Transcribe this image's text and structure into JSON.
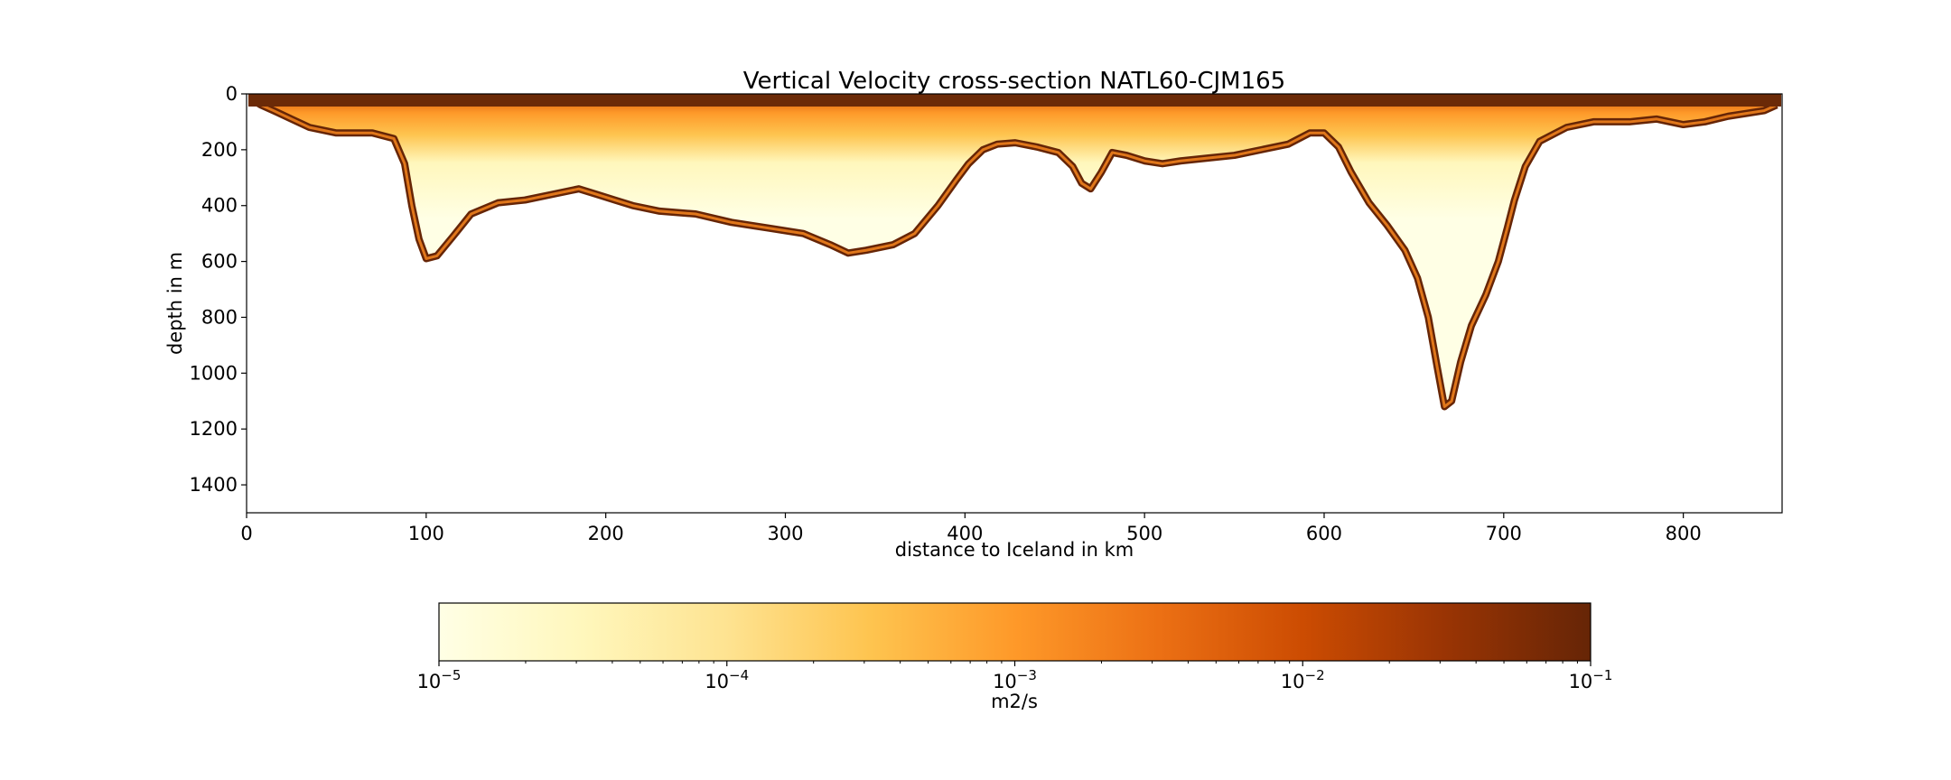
{
  "chart_data": {
    "type": "heatmap",
    "title": "Vertical Velocity cross-section NATL60-CJM165",
    "xlabel": "distance to Iceland in km",
    "ylabel": "depth in m",
    "xlim": [
      0,
      855
    ],
    "ylim": [
      1500,
      0
    ],
    "y_inverted": true,
    "xticks": [
      0,
      100,
      200,
      300,
      400,
      500,
      600,
      700,
      800
    ],
    "yticks": [
      0,
      200,
      400,
      600,
      800,
      1000,
      1200,
      1400
    ],
    "seafloor_depth_profile": {
      "x_km": [
        3,
        8,
        15,
        25,
        35,
        50,
        70,
        82,
        88,
        92,
        96,
        100,
        106,
        115,
        125,
        140,
        155,
        170,
        185,
        195,
        205,
        215,
        230,
        250,
        270,
        290,
        310,
        325,
        335,
        345,
        360,
        372,
        385,
        395,
        402,
        410,
        418,
        428,
        440,
        452,
        460,
        465,
        470,
        476,
        482,
        490,
        500,
        510,
        520,
        535,
        550,
        565,
        580,
        592,
        600,
        608,
        615,
        625,
        635,
        645,
        652,
        658,
        663,
        667,
        671,
        676,
        682,
        690,
        697,
        702,
        706,
        712,
        720,
        735,
        750,
        770,
        785,
        800,
        812,
        825,
        835,
        845,
        852
      ],
      "depth_m": [
        20,
        40,
        60,
        90,
        120,
        140,
        140,
        160,
        250,
        400,
        520,
        590,
        580,
        510,
        430,
        390,
        380,
        360,
        340,
        360,
        380,
        400,
        420,
        430,
        460,
        480,
        500,
        540,
        570,
        560,
        540,
        500,
        400,
        310,
        250,
        200,
        180,
        175,
        190,
        210,
        260,
        320,
        340,
        280,
        210,
        220,
        240,
        250,
        240,
        230,
        220,
        200,
        180,
        140,
        140,
        190,
        280,
        390,
        470,
        560,
        660,
        800,
        980,
        1120,
        1100,
        960,
        830,
        720,
        600,
        480,
        380,
        260,
        170,
        120,
        100,
        100,
        90,
        110,
        100,
        80,
        70,
        60,
        40
      ],
      "description": "section outline; values shaded between surface and seafloor, white below"
    },
    "colorbar": {
      "label": "m2/s",
      "scale": "log",
      "range": [
        1e-05,
        0.1
      ],
      "colormap": "YlOrBr",
      "tick_labels": [
        {
          "base": "10",
          "exp": "−5",
          "value": 1e-05
        },
        {
          "base": "10",
          "exp": "−4",
          "value": 0.0001
        },
        {
          "base": "10",
          "exp": "−3",
          "value": 0.001
        },
        {
          "base": "10",
          "exp": "−2",
          "value": 0.01
        },
        {
          "base": "10",
          "exp": "−1",
          "value": 0.1
        }
      ],
      "colors": [
        "#ffffe5",
        "#fff7bc",
        "#fee391",
        "#fec44f",
        "#fe9929",
        "#ec7014",
        "#cc4c02",
        "#993404",
        "#662506"
      ]
    }
  }
}
